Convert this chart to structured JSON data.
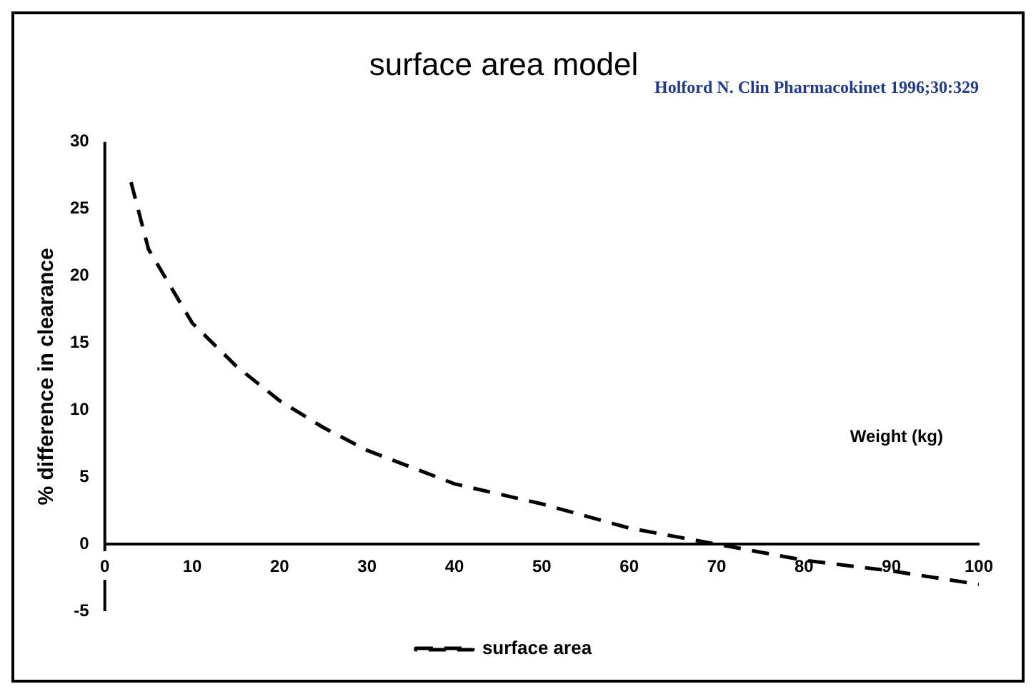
{
  "chart_data": {
    "type": "line",
    "title": "surface area model",
    "xlabel": "Weight (kg)",
    "ylabel": "% difference in clearance",
    "annotations": [
      "Holford N. Clin Pharmacokinet 1996;30:329"
    ],
    "x": [
      3,
      5,
      10,
      15,
      20,
      25,
      30,
      40,
      50,
      60,
      70,
      80,
      90,
      100
    ],
    "series": [
      {
        "name": "surface area",
        "color": "#000000",
        "values": [
          27,
          22,
          16.5,
          13.3,
          10.7,
          8.7,
          7,
          4.5,
          3,
          1.2,
          0,
          -1.2,
          -2,
          -3
        ]
      }
    ],
    "xlim": [
      0,
      100
    ],
    "xticks": [
      0,
      10,
      20,
      30,
      40,
      50,
      60,
      70,
      80,
      90,
      100
    ],
    "ylim": [
      -5,
      30
    ],
    "yticks": [
      -5,
      0,
      5,
      10,
      15,
      20,
      25,
      30
    ],
    "grid": false,
    "legend": "bottom",
    "marker": "none",
    "line_style": "dashed"
  }
}
